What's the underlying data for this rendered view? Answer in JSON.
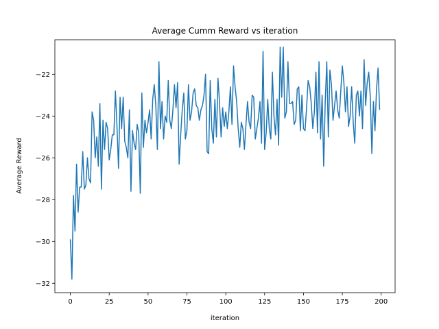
{
  "chart_data": {
    "type": "line",
    "title": "Average Cumm Reward vs iteration",
    "xlabel": "iteration",
    "ylabel": "Average Reward",
    "xlim": [
      -9.95,
      208.95
    ],
    "ylim": [
      -32.45,
      -20.35
    ],
    "xticks": [
      0,
      25,
      50,
      75,
      100,
      125,
      150,
      175,
      200
    ],
    "yticks": [
      -32,
      -30,
      -28,
      -26,
      -24,
      -22
    ],
    "grid": false,
    "legend": "none",
    "series": [
      {
        "color": "#1f77b4",
        "x": [
          0,
          1,
          2,
          3,
          4,
          5,
          6,
          7,
          8,
          9,
          10,
          11,
          12,
          13,
          14,
          15,
          16,
          17,
          18,
          19,
          20,
          21,
          22,
          23,
          24,
          25,
          26,
          27,
          28,
          29,
          30,
          31,
          32,
          33,
          34,
          35,
          36,
          37,
          38,
          39,
          40,
          41,
          42,
          43,
          44,
          45,
          46,
          47,
          48,
          49,
          50,
          51,
          52,
          53,
          54,
          55,
          56,
          57,
          58,
          59,
          60,
          61,
          62,
          63,
          64,
          65,
          66,
          67,
          68,
          69,
          70,
          71,
          72,
          73,
          74,
          75,
          76,
          77,
          78,
          79,
          80,
          81,
          82,
          83,
          84,
          85,
          86,
          87,
          88,
          89,
          90,
          91,
          92,
          93,
          94,
          95,
          96,
          97,
          98,
          99,
          100,
          101,
          102,
          103,
          104,
          105,
          106,
          107,
          108,
          109,
          110,
          111,
          112,
          113,
          114,
          115,
          116,
          117,
          118,
          119,
          120,
          121,
          122,
          123,
          124,
          125,
          126,
          127,
          128,
          129,
          130,
          131,
          132,
          133,
          134,
          135,
          136,
          137,
          138,
          139,
          140,
          141,
          142,
          143,
          144,
          145,
          146,
          147,
          148,
          149,
          150,
          151,
          152,
          153,
          154,
          155,
          156,
          157,
          158,
          159,
          160,
          161,
          162,
          163,
          164,
          165,
          166,
          167,
          168,
          169,
          170,
          171,
          172,
          173,
          174,
          175,
          176,
          177,
          178,
          179,
          180,
          181,
          182,
          183,
          184,
          185,
          186,
          187,
          188,
          189,
          190,
          191,
          192,
          193,
          194,
          195,
          196,
          197,
          198,
          199
        ],
        "y": [
          -29.9,
          -31.8,
          -27.8,
          -29.5,
          -26.3,
          -28.6,
          -27.4,
          -27.4,
          -25.7,
          -27.5,
          -27.3,
          -26.0,
          -27.0,
          -27.2,
          -23.8,
          -24.2,
          -26.0,
          -25.0,
          -26.4,
          -23.4,
          -27.5,
          -24.2,
          -25.6,
          -24.3,
          -24.6,
          -26.1,
          -25.6,
          -24.9,
          -24.9,
          -22.8,
          -24.5,
          -26.5,
          -23.1,
          -24.6,
          -23.1,
          -25.2,
          -25.5,
          -26.0,
          -23.7,
          -27.6,
          -24.7,
          -25.3,
          -25.6,
          -24.4,
          -24.8,
          -27.7,
          -22.9,
          -25.5,
          -24.2,
          -24.8,
          -24.3,
          -23.7,
          -25.1,
          -23.2,
          -22.5,
          -23.5,
          -25.6,
          -21.4,
          -24.6,
          -23.3,
          -25.1,
          -24.0,
          -24.3,
          -22.3,
          -24.2,
          -24.6,
          -23.7,
          -22.5,
          -23.6,
          -22.4,
          -26.3,
          -24.9,
          -23.7,
          -22.9,
          -25.1,
          -24.7,
          -22.5,
          -24.2,
          -23.8,
          -22.9,
          -22.7,
          -23.5,
          -23.6,
          -24.2,
          -23.7,
          -23.5,
          -23.0,
          -22.0,
          -25.7,
          -25.8,
          -22.3,
          -24.6,
          -25.3,
          -23.2,
          -25.0,
          -22.2,
          -23.4,
          -25.0,
          -23.6,
          -24.5,
          -23.8,
          -24.6,
          -23.8,
          -22.6,
          -24.4,
          -21.6,
          -22.6,
          -23.3,
          -24.6,
          -25.5,
          -24.3,
          -24.6,
          -25.6,
          -24.4,
          -23.3,
          -24.3,
          -24.6,
          -23.0,
          -23.1,
          -25.1,
          -24.6,
          -24.1,
          -23.3,
          -25.3,
          -20.9,
          -25.6,
          -24.8,
          -23.2,
          -24.6,
          -25.1,
          -21.9,
          -24.0,
          -24.9,
          -23.2,
          -25.4,
          -20.7,
          -23.1,
          -20.7,
          -24.1,
          -23.8,
          -21.4,
          -23.4,
          -23.4,
          -23.3,
          -24.4,
          -24.2,
          -22.7,
          -22.6,
          -24.7,
          -23.0,
          -24.6,
          -24.7,
          -23.6,
          -22.3,
          -22.6,
          -23.4,
          -24.6,
          -23.8,
          -21.9,
          -24.8,
          -21.4,
          -25.1,
          -23.0,
          -26.4,
          -23.3,
          -21.4,
          -25.0,
          -21.8,
          -22.5,
          -24.2,
          -23.5,
          -22.8,
          -23.7,
          -24.1,
          -22.8,
          -21.6,
          -22.4,
          -23.8,
          -22.6,
          -24.5,
          -24.0,
          -22.6,
          -24.3,
          -25.3,
          -23.0,
          -22.8,
          -24.0,
          -22.8,
          -24.6,
          -21.3,
          -23.5,
          -22.4,
          -21.9,
          -23.1,
          -25.8,
          -23.3,
          -24.7,
          -22.7,
          -21.7,
          -23.7
        ]
      }
    ]
  }
}
